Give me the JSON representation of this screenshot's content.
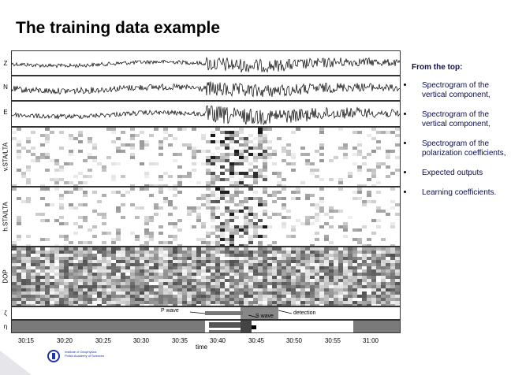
{
  "slide": {
    "title": "The training data example"
  },
  "figure": {
    "panels": [
      {
        "label": "Z",
        "kind": "waveform"
      },
      {
        "label": "N",
        "kind": "waveform"
      },
      {
        "label": "E",
        "kind": "waveform"
      },
      {
        "label": "v.STA/LTA",
        "kind": "spectrogram"
      },
      {
        "label": "h.STA/LTA",
        "kind": "spectrogram"
      },
      {
        "label": "DOP",
        "kind": "spectrogram"
      },
      {
        "label": "ζ",
        "kind": "output"
      },
      {
        "label": "η",
        "kind": "coefficients"
      }
    ],
    "x_ticks": [
      "30:15",
      "30:20",
      "30:25",
      "30:30",
      "30:35",
      "30:40",
      "30:45",
      "30:50",
      "30:55",
      "31:00"
    ],
    "x_title": "time",
    "annotations": {
      "p_wave": "P wave",
      "s_wave": "S wave",
      "detection": "detection"
    }
  },
  "sidebar": {
    "heading": "From the top:",
    "items": [
      "Spectrogram of the vertical component,",
      "Spectrogram of the vertical component,",
      "Spectrogram of the polarization coefficients,",
      "Expected outputs",
      "Learning coefficients."
    ]
  },
  "logo": {
    "line1": "Institute of Geophysics",
    "line2": "Polish Academy of Sciences"
  },
  "colors": {
    "title": "#000000",
    "sidebar_text": "#0d0d4d",
    "logo_blue": "#2233aa"
  }
}
